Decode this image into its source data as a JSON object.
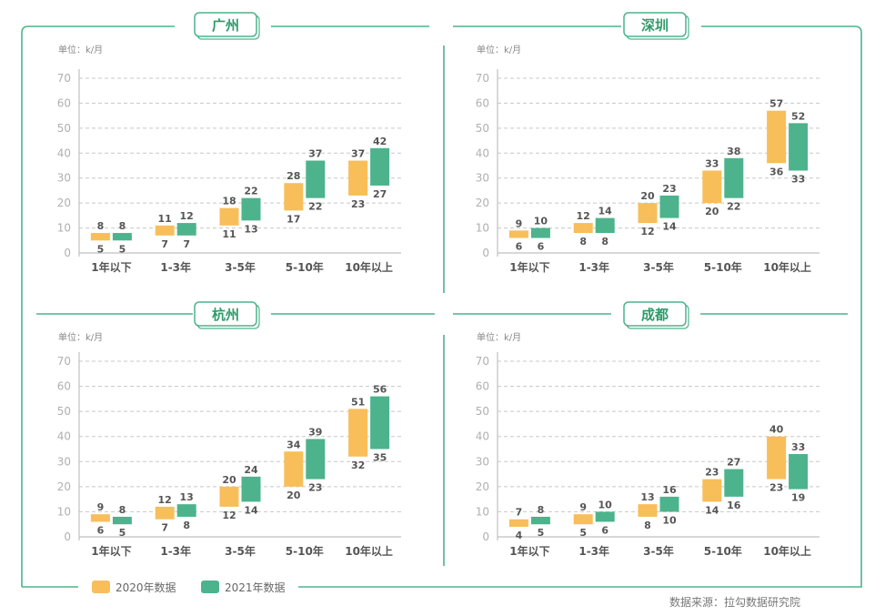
{
  "legend": {
    "items": [
      {
        "label": "2020年数据",
        "color": "#F8BE5A"
      },
      {
        "label": "2021年数据",
        "color": "#4DB38C"
      }
    ]
  },
  "source": "数据来源：拉勾数据研究院",
  "colors": {
    "frame": "#4DB38C",
    "grid": "#c8c8c8",
    "axis": "#c0c0c0"
  },
  "chart_data": [
    {
      "type": "bar",
      "title": "广州",
      "unit_label": "单位：k/月",
      "categories": [
        "1年以下",
        "1-3年",
        "3-5年",
        "5-10年",
        "10年以上"
      ],
      "ylim": [
        0,
        70
      ],
      "yticks": [
        0,
        10,
        20,
        30,
        40,
        50,
        60,
        70
      ],
      "grid": true,
      "series": [
        {
          "name": "2020年数据",
          "low": [
            5,
            7,
            11,
            17,
            23
          ],
          "high": [
            8,
            11,
            18,
            28,
            37
          ]
        },
        {
          "name": "2021年数据",
          "low": [
            5,
            7,
            13,
            22,
            27
          ],
          "high": [
            8,
            12,
            22,
            37,
            42
          ]
        }
      ]
    },
    {
      "type": "bar",
      "title": "深圳",
      "unit_label": "单位：k/月",
      "categories": [
        "1年以下",
        "1-3年",
        "3-5年",
        "5-10年",
        "10年以上"
      ],
      "ylim": [
        0,
        70
      ],
      "yticks": [
        0,
        10,
        20,
        30,
        40,
        50,
        60,
        70
      ],
      "grid": true,
      "series": [
        {
          "name": "2020年数据",
          "low": [
            6,
            8,
            12,
            20,
            36
          ],
          "high": [
            9,
            12,
            20,
            33,
            57
          ]
        },
        {
          "name": "2021年数据",
          "low": [
            6,
            8,
            14,
            22,
            33
          ],
          "high": [
            10,
            14,
            23,
            38,
            52
          ]
        }
      ]
    },
    {
      "type": "bar",
      "title": "杭州",
      "unit_label": "单位：k/月",
      "categories": [
        "1年以下",
        "1-3年",
        "3-5年",
        "5-10年",
        "10年以上"
      ],
      "ylim": [
        0,
        70
      ],
      "yticks": [
        0,
        10,
        20,
        30,
        40,
        50,
        60,
        70
      ],
      "grid": true,
      "series": [
        {
          "name": "2020年数据",
          "low": [
            6,
            7,
            12,
            20,
            32
          ],
          "high": [
            9,
            12,
            20,
            34,
            51
          ]
        },
        {
          "name": "2021年数据",
          "low": [
            5,
            8,
            14,
            23,
            35
          ],
          "high": [
            8,
            13,
            24,
            39,
            56
          ]
        }
      ]
    },
    {
      "type": "bar",
      "title": "成都",
      "unit_label": "单位：k/月",
      "categories": [
        "1年以下",
        "1-3年",
        "3-5年",
        "5-10年",
        "10年以上"
      ],
      "ylim": [
        0,
        70
      ],
      "yticks": [
        0,
        10,
        20,
        30,
        40,
        50,
        60,
        70
      ],
      "grid": true,
      "series": [
        {
          "name": "2020年数据",
          "low": [
            4,
            5,
            8,
            14,
            23
          ],
          "high": [
            7,
            9,
            13,
            23,
            40
          ]
        },
        {
          "name": "2021年数据",
          "low": [
            5,
            6,
            10,
            16,
            19
          ],
          "high": [
            8,
            10,
            16,
            27,
            33
          ]
        }
      ]
    }
  ]
}
